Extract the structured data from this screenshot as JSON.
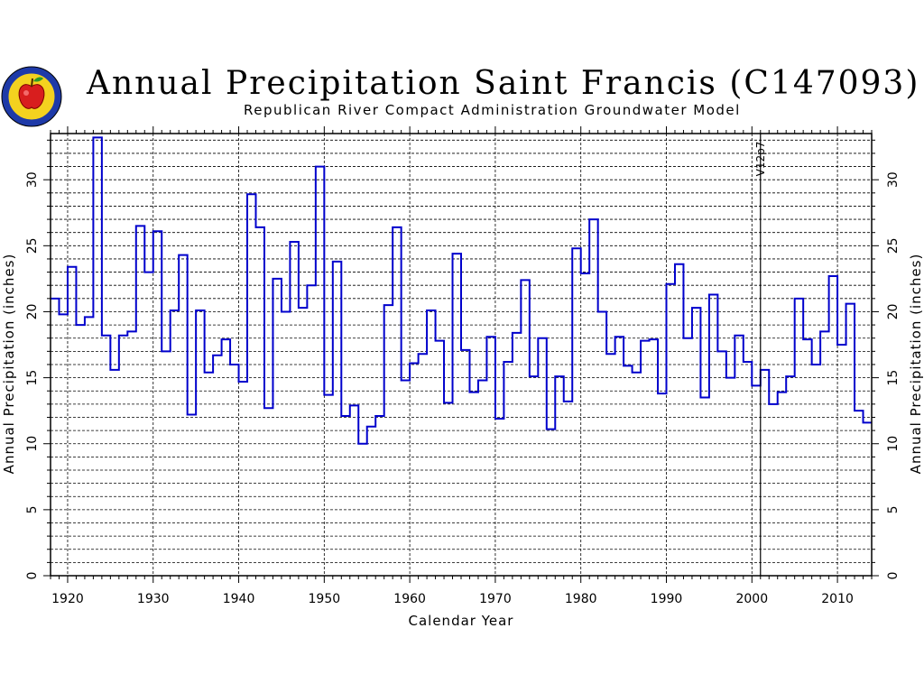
{
  "header": {
    "title": "Annual Precipitation Saint Francis (C147093)",
    "subtitle": "Republican River Compact Administration Groundwater Model"
  },
  "logo": {
    "icon": "apple-seal-icon"
  },
  "chart_data": {
    "type": "line",
    "step": true,
    "title": "Annual Precipitation Saint Francis (C147093)",
    "subtitle": "Republican River Compact Administration Groundwater Model",
    "xlabel": "Calendar Year",
    "ylabel": "Annual Precipitation (inches)",
    "ylabel_right": "Annual Precipitation (inches)",
    "xlim": [
      1918,
      2014
    ],
    "ylim": [
      0,
      33.5
    ],
    "xticks": [
      "1920",
      "1930",
      "1940",
      "1950",
      "1960",
      "1970",
      "1980",
      "1990",
      "2000",
      "2010"
    ],
    "yticks": [
      "0",
      "5",
      "10",
      "15",
      "20",
      "25",
      "30"
    ],
    "grid": true,
    "line_color": "#0000cc",
    "annotation": {
      "x": 2001,
      "label": "V12p7"
    },
    "x": [
      1918,
      1919,
      1920,
      1921,
      1922,
      1923,
      1924,
      1925,
      1926,
      1927,
      1928,
      1929,
      1930,
      1931,
      1932,
      1933,
      1934,
      1935,
      1936,
      1937,
      1938,
      1939,
      1940,
      1941,
      1942,
      1943,
      1944,
      1945,
      1946,
      1947,
      1948,
      1949,
      1950,
      1951,
      1952,
      1953,
      1954,
      1955,
      1956,
      1957,
      1958,
      1959,
      1960,
      1961,
      1962,
      1963,
      1964,
      1965,
      1966,
      1967,
      1968,
      1969,
      1970,
      1971,
      1972,
      1973,
      1974,
      1975,
      1976,
      1977,
      1978,
      1979,
      1980,
      1981,
      1982,
      1983,
      1984,
      1985,
      1986,
      1987,
      1988,
      1989,
      1990,
      1991,
      1992,
      1993,
      1994,
      1995,
      1996,
      1997,
      1998,
      1999,
      2000,
      2001,
      2002,
      2003,
      2004,
      2005,
      2006,
      2007,
      2008,
      2009,
      2010,
      2011,
      2012,
      2013
    ],
    "values": [
      21.0,
      19.8,
      23.4,
      19.0,
      19.6,
      33.2,
      18.2,
      15.6,
      18.2,
      18.5,
      26.5,
      23.0,
      26.1,
      17.0,
      20.1,
      24.3,
      12.2,
      20.1,
      15.4,
      16.7,
      17.9,
      16.0,
      14.7,
      28.9,
      26.4,
      12.7,
      22.5,
      20.0,
      25.3,
      20.3,
      22.0,
      31.0,
      13.7,
      23.8,
      12.1,
      12.9,
      10.0,
      11.3,
      12.1,
      20.5,
      26.4,
      14.8,
      16.1,
      16.8,
      20.1,
      17.8,
      13.1,
      24.4,
      17.1,
      13.9,
      14.8,
      18.1,
      11.9,
      16.2,
      18.4,
      22.4,
      15.1,
      18.0,
      11.1,
      15.1,
      13.2,
      24.8,
      22.9,
      27.0,
      20.0,
      16.8,
      18.1,
      15.9,
      15.4,
      17.8,
      17.9,
      13.8,
      22.1,
      23.6,
      18.0,
      20.3,
      13.5,
      21.3,
      17.0,
      15.0,
      18.2,
      16.2,
      14.4,
      15.6,
      13.0,
      13.9,
      15.1,
      21.0,
      17.9,
      16.0,
      18.5,
      22.7,
      17.5,
      20.6,
      12.5,
      11.6
    ]
  }
}
